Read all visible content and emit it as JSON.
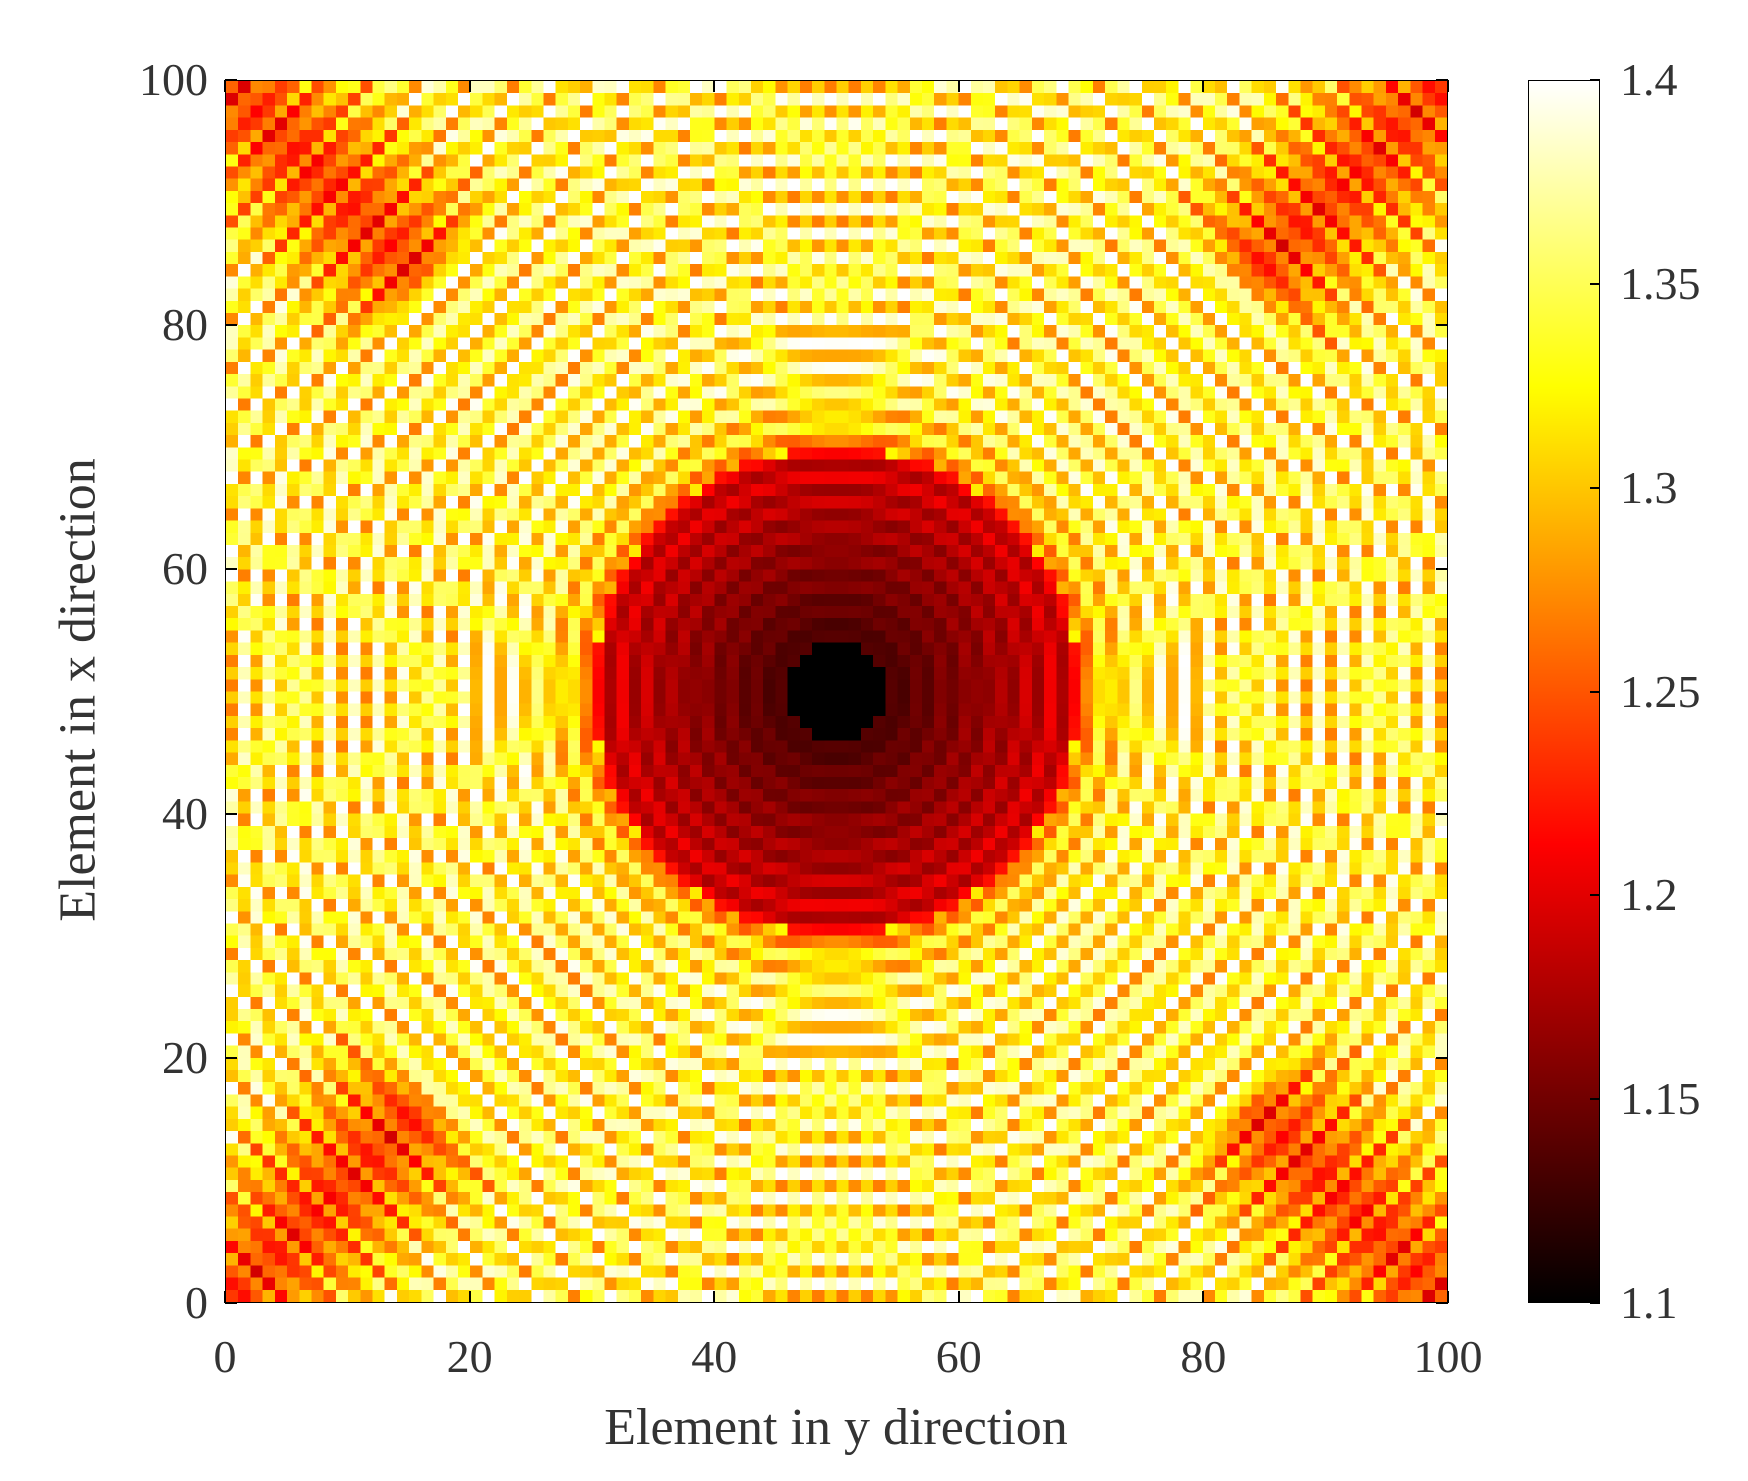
{
  "chart_data": {
    "type": "heatmap",
    "title": "",
    "xlabel": "Element in y direction",
    "ylabel": "Element in x direction",
    "xlim": [
      0,
      100
    ],
    "ylim": [
      0,
      100
    ],
    "grid_size": [
      100,
      100
    ],
    "colormap": "hot",
    "x_ticks": [
      "0",
      "20",
      "40",
      "60",
      "80",
      "100"
    ],
    "y_ticks": [
      "0",
      "20",
      "40",
      "60",
      "80",
      "100"
    ],
    "colorbar": {
      "range": [
        1.1,
        1.4
      ],
      "ticks": [
        "1.1",
        "1.15",
        "1.2",
        "1.25",
        "1.3",
        "1.35",
        "1.4"
      ]
    },
    "pattern": "concentric rings centered at (50, 50); minimum 1.1 at center, values alternate between bright (near 1.4) and dark bands outward, with darker diagonal streaks toward the corners"
  },
  "colors": {
    "background": "#ffffff",
    "axis": "#000000",
    "text": "#333333"
  }
}
